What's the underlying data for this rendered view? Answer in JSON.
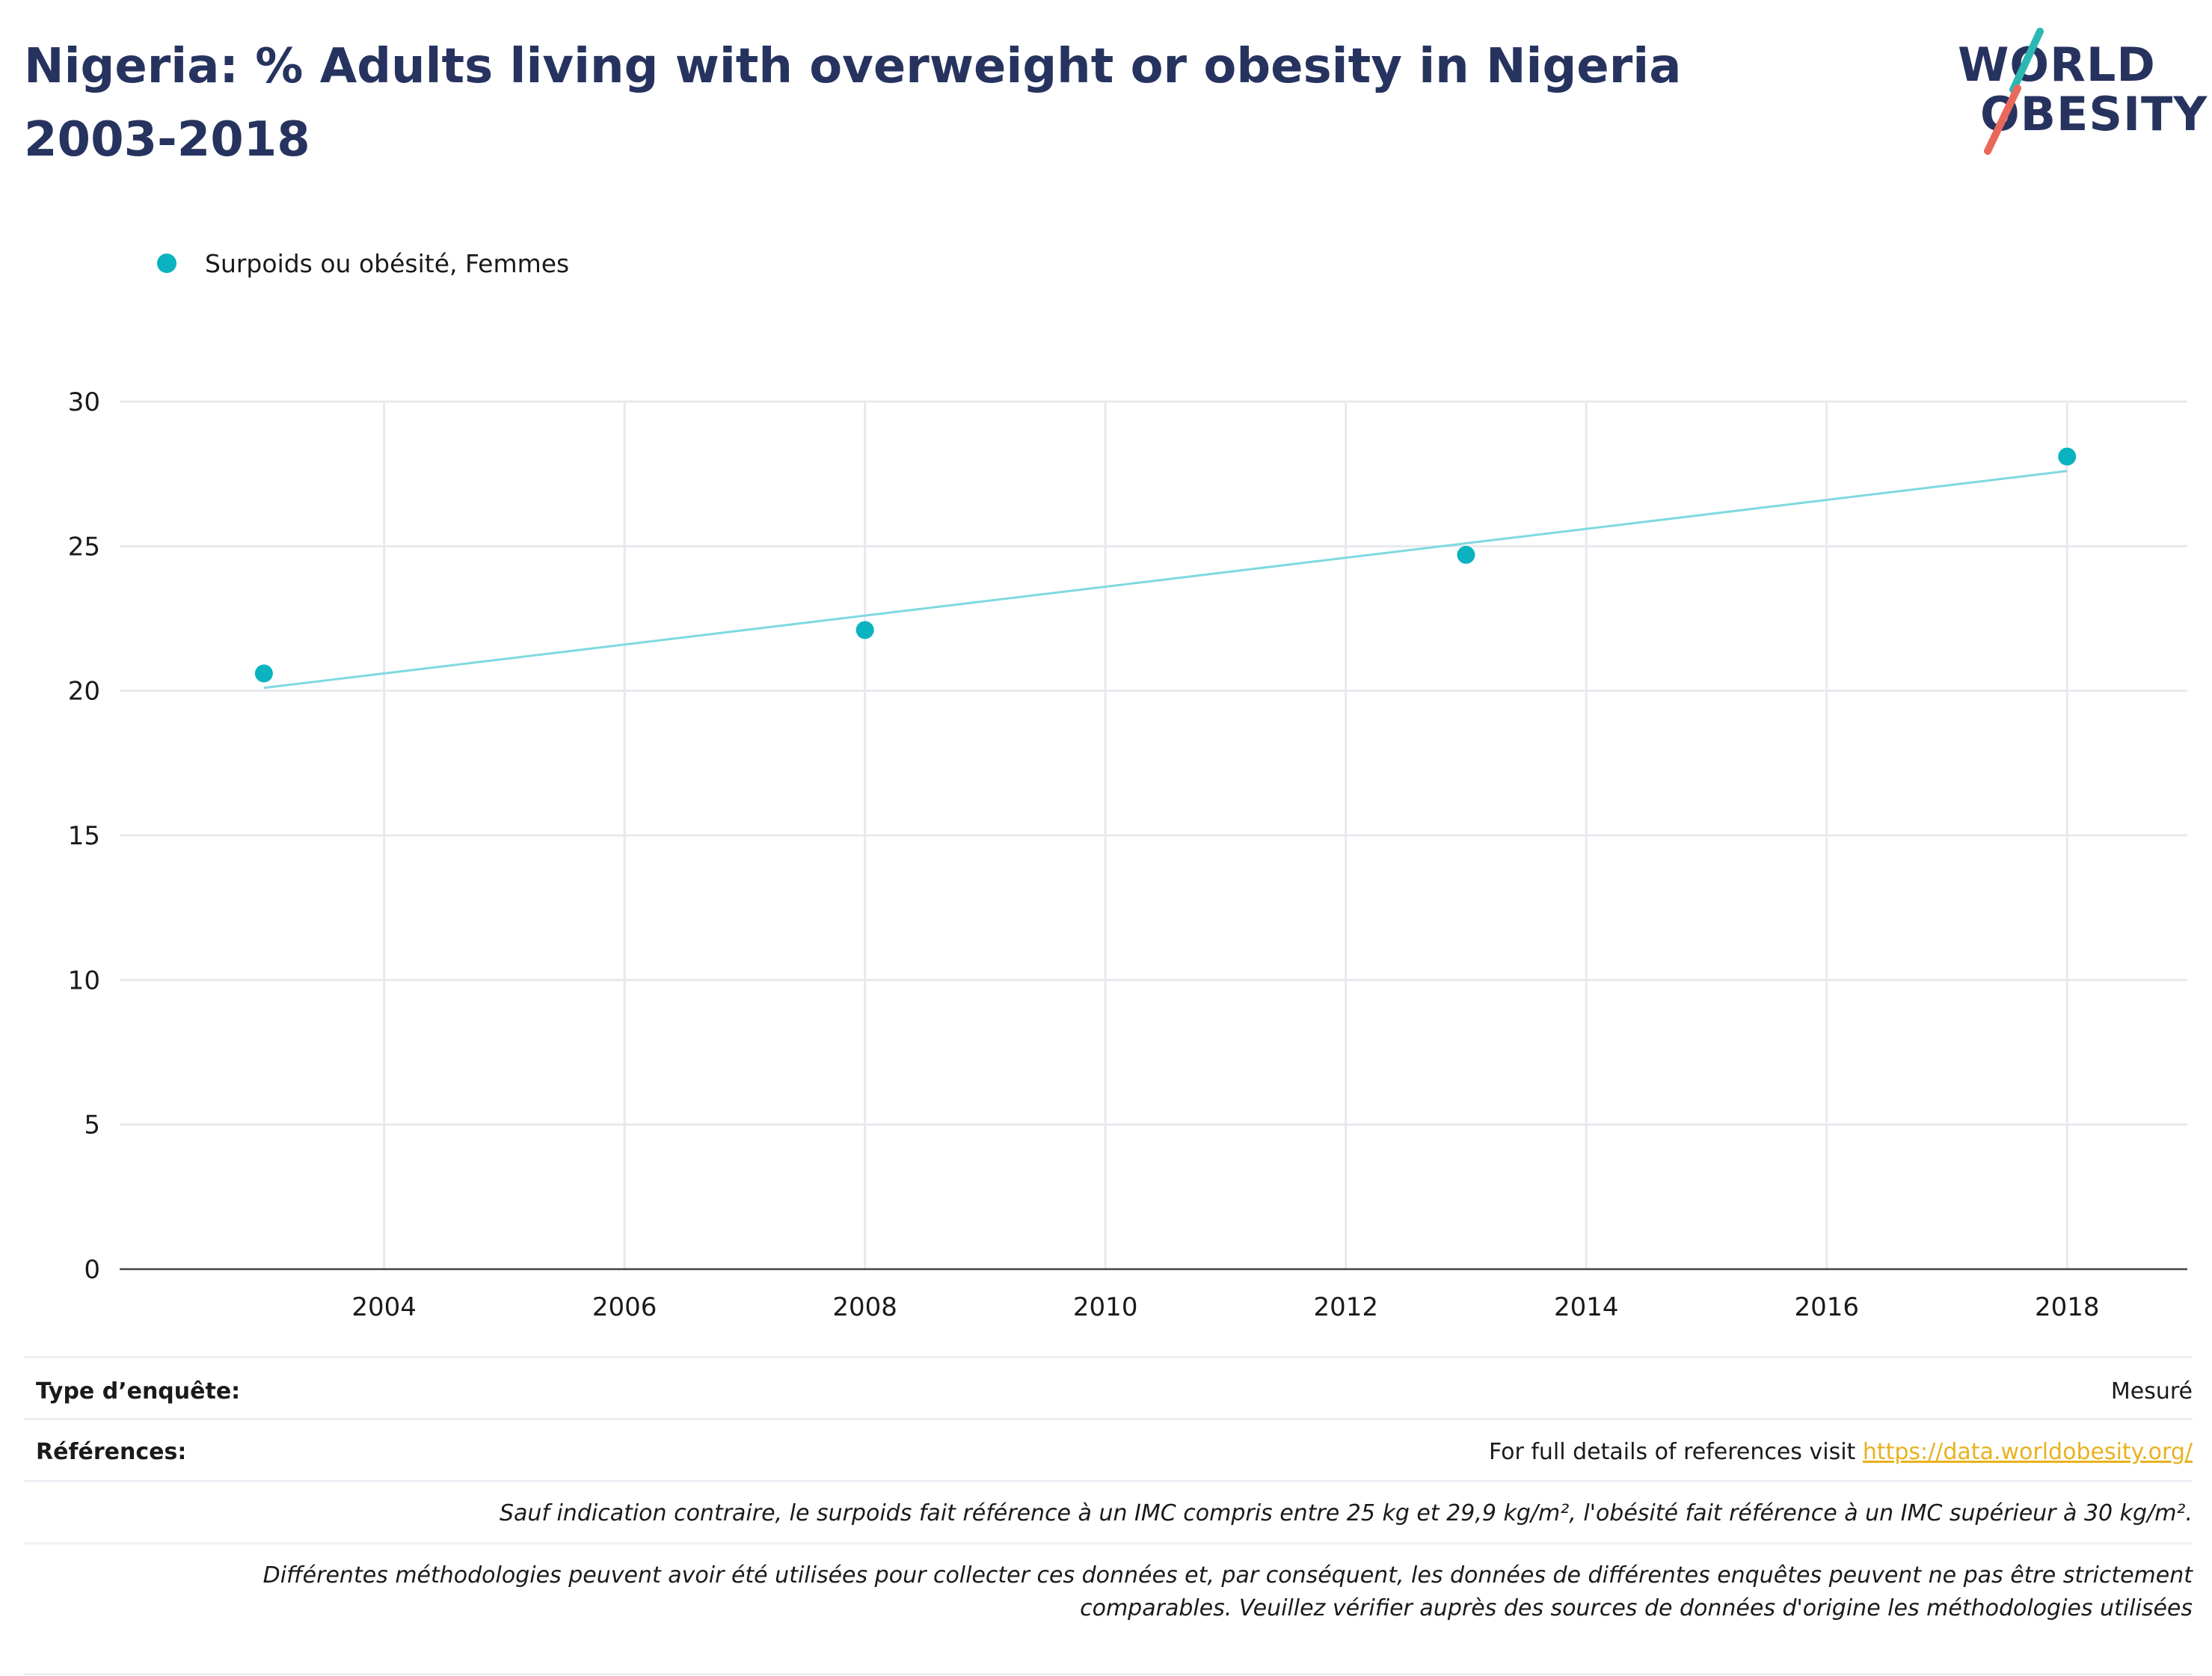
{
  "header": {
    "title": "Nigeria: % Adults living with overweight or obesity in Nigeria 2003-2018",
    "logo_line1": "WORLD",
    "logo_line2": "OBESITY"
  },
  "legend": {
    "items": [
      {
        "label": "Surpoids ou obésité, Femmes",
        "color": "#0bb3c0"
      }
    ]
  },
  "chart_data": {
    "type": "scatter",
    "title": "Nigeria: % Adults living with overweight or obesity in Nigeria 2003-2018",
    "xlabel": "",
    "ylabel": "",
    "xlim": [
      2001.8,
      2019.0
    ],
    "ylim": [
      0,
      30
    ],
    "xticks": [
      2004,
      2006,
      2008,
      2010,
      2012,
      2014,
      2016,
      2018
    ],
    "yticks": [
      0,
      5,
      10,
      15,
      20,
      25,
      30
    ],
    "grid": true,
    "legend_position": "top-left",
    "series": [
      {
        "name": "Surpoids ou obésité, Femmes",
        "color": "#0bb3c0",
        "x": [
          2003,
          2008,
          2013,
          2018
        ],
        "y": [
          20.6,
          22.1,
          24.7,
          28.1
        ]
      }
    ],
    "trendline": {
      "color": "#7fd9df",
      "x": [
        2003,
        2018
      ],
      "y": [
        20.1,
        27.6
      ]
    }
  },
  "footer": {
    "survey_type_label": "Type d’enquête:",
    "survey_type_value": "Mesuré",
    "references_label": "Références:",
    "references_text": "For full details of references visit ",
    "references_link": "https://data.worldobesity.org/",
    "note1": "Sauf indication contraire, le surpoids fait référence à un IMC compris entre 25 kg et 29,9 kg/m², l'obésité fait référence à un IMC supérieur à 30 kg/m².",
    "note2_line1": "Différentes méthodologies peuvent avoir été utilisées pour collecter ces données et, par conséquent, les données de différentes enquêtes peuvent ne pas être strictement",
    "note2_line2": "comparables. Veuillez vérifier auprès des sources de données d'origine les méthodologies utilisées"
  }
}
